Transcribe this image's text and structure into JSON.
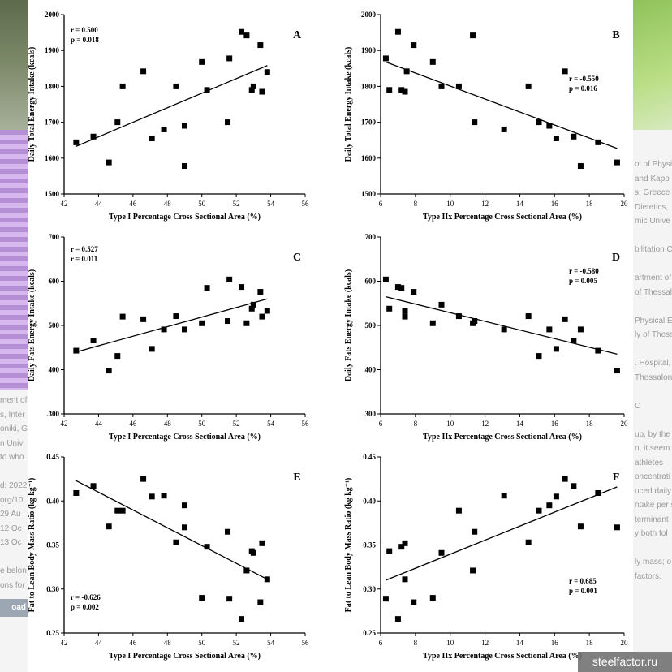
{
  "watermark": "steelfactor.ru",
  "download_label": "oad",
  "left_partial_text": [
    "ment of",
    "s, Inter",
    "oniki, G",
    "n Univ",
    "to who",
    "",
    "d: 2022",
    "org/10",
    "29 Au",
    "12 Oc",
    "13 Oc",
    "",
    "e belon",
    "ons for"
  ],
  "right_partial_text": [
    "ol of Physi",
    "and Kapo",
    "s, Greece",
    "Dietetics,",
    "mic Unive",
    "",
    "bilitation C",
    "",
    "artment of",
    "of Thessal",
    "",
    "Physical Ed",
    "ly of Thess",
    "",
    ". Hospital,",
    "Thessalon",
    "",
    "C",
    "",
    "up, by the",
    "n, it seem",
    "athletes",
    "oncentrati",
    "uced daily",
    "ntake per s",
    "terminant",
    "y both fol",
    "",
    "ly mass; o",
    "factors."
  ],
  "chart_data": [
    {
      "type": "scatter",
      "panel_label": "A",
      "stats": [
        "r = 0.500",
        "p = 0.018"
      ],
      "xlabel": "Type I Percentage Cross Sectional Area (%)",
      "ylabel": "Daily Total Energy Intake (kcals)",
      "xlim": [
        42,
        56
      ],
      "ylim": [
        1500,
        2000
      ],
      "xticks": [
        42,
        44,
        46,
        48,
        50,
        52,
        54,
        56
      ],
      "xtick_labels": [
        "42",
        "44",
        "46",
        "48",
        "50",
        "52",
        "54",
        "56"
      ],
      "yticks": [
        1500,
        1600,
        1700,
        1800,
        1900,
        2000
      ],
      "ytick_labels": [
        "1500",
        "1600",
        "1700",
        "1800",
        "1900",
        "2000"
      ],
      "x": [
        42.7,
        43.7,
        44.6,
        45.1,
        45.4,
        46.6,
        47.1,
        47.8,
        48.5,
        49.0,
        49.0,
        50.0,
        50.3,
        51.5,
        51.6,
        52.3,
        52.6,
        52.9,
        53.0,
        53.4,
        53.5,
        53.8
      ],
      "y": [
        1644,
        1660,
        1588,
        1700,
        1800,
        1842,
        1655,
        1680,
        1800,
        1690,
        1578,
        1868,
        1790,
        1700,
        1878,
        1952,
        1942,
        1790,
        1800,
        1915,
        1785,
        1840
      ],
      "trend": {
        "x": [
          42.7,
          53.8
        ],
        "y": [
          1633,
          1858
        ]
      }
    },
    {
      "type": "scatter",
      "panel_label": "B",
      "stats": [
        "r = -0.550",
        "p = 0.016"
      ],
      "xlabel": "Type IIx Percentage Cross Sectional Area (%)",
      "ylabel": "Daily Total Energy Intake (kcals)",
      "xlim": [
        6,
        20
      ],
      "ylim": [
        1500,
        2000
      ],
      "xticks": [
        6,
        8,
        10,
        12,
        14,
        16,
        18,
        20
      ],
      "xtick_labels": [
        "6",
        "8",
        "10",
        "12",
        "14",
        "16",
        "18",
        "20"
      ],
      "yticks": [
        1500,
        1600,
        1700,
        1800,
        1900,
        2000
      ],
      "ytick_labels": [
        "1500",
        "1600",
        "1700",
        "1800",
        "1900",
        "2000"
      ],
      "x": [
        6.3,
        6.5,
        7.0,
        7.2,
        7.4,
        7.5,
        7.9,
        9.0,
        9.5,
        10.5,
        11.3,
        11.4,
        13.1,
        14.5,
        15.1,
        15.7,
        16.1,
        16.6,
        17.1,
        17.5,
        18.5,
        19.6
      ],
      "y": [
        1878,
        1790,
        1952,
        1790,
        1785,
        1842,
        1915,
        1868,
        1800,
        1800,
        1942,
        1700,
        1680,
        1800,
        1700,
        1690,
        1655,
        1842,
        1660,
        1578,
        1644,
        1588
      ],
      "trend": {
        "x": [
          6.3,
          19.6
        ],
        "y": [
          1868,
          1627
        ]
      }
    },
    {
      "type": "scatter",
      "panel_label": "C",
      "stats": [
        "r = 0.527",
        "r = 0.011"
      ],
      "xlabel": "Type I Percentage Cross Sectional Area (%)",
      "ylabel": "Daily Fats Energy Intake (kcals)",
      "xlim": [
        42,
        56
      ],
      "ylim": [
        300,
        700
      ],
      "xticks": [
        42,
        44,
        46,
        48,
        50,
        52,
        54,
        56
      ],
      "xtick_labels": [
        "42",
        "44",
        "46",
        "48",
        "50",
        "52",
        "54",
        "56"
      ],
      "yticks": [
        300,
        400,
        500,
        600,
        700
      ],
      "ytick_labels": [
        ".300",
        "400",
        "500",
        "600",
        "700"
      ],
      "x": [
        42.7,
        43.7,
        44.6,
        45.1,
        45.4,
        46.6,
        47.1,
        47.8,
        48.5,
        49.0,
        50.0,
        50.3,
        51.5,
        51.6,
        52.3,
        52.6,
        52.9,
        53.0,
        53.4,
        53.5,
        53.8
      ],
      "y": [
        443,
        466,
        398,
        431,
        520,
        514,
        447,
        491,
        521,
        491,
        505,
        585,
        510,
        604,
        587,
        505,
        538,
        547,
        576,
        520,
        533
      ],
      "trend": {
        "x": [
          42.7,
          53.8
        ],
        "y": [
          440,
          560
        ]
      }
    },
    {
      "type": "scatter",
      "panel_label": "D",
      "stats": [
        "r = -0.580",
        "p = 0.005"
      ],
      "xlabel": "Type IIx Percentage Cross Sectional Area (%)",
      "ylabel": "Daily Fats Energy Intake (kcals)",
      "xlim": [
        6,
        20
      ],
      "ylim": [
        300,
        700
      ],
      "xticks": [
        6,
        8,
        10,
        12,
        14,
        16,
        18,
        20
      ],
      "xtick_labels": [
        "6",
        "8",
        "10",
        "12",
        "14",
        "16",
        "18",
        "20"
      ],
      "yticks": [
        300,
        400,
        500,
        600,
        700
      ],
      "ytick_labels": [
        ".300",
        "400",
        "500",
        "600",
        "700"
      ],
      "x": [
        6.3,
        6.5,
        7.0,
        7.2,
        7.4,
        7.4,
        7.9,
        9.0,
        9.5,
        10.5,
        11.3,
        11.4,
        13.1,
        14.5,
        15.1,
        15.7,
        16.1,
        16.6,
        17.1,
        17.5,
        18.5,
        19.6
      ],
      "y": [
        604,
        538,
        587,
        585,
        520,
        533,
        576,
        505,
        547,
        521,
        505,
        510,
        491,
        521,
        431,
        491,
        447,
        514,
        466,
        491,
        443,
        398
      ],
      "trend": {
        "x": [
          6.3,
          19.6
        ],
        "y": [
          565,
          435
        ]
      }
    },
    {
      "type": "scatter",
      "panel_label": "E",
      "stats": [
        "r = -0.626",
        "p = 0.002"
      ],
      "xlabel": "Type I Percentage Cross Sectional Area (%)",
      "ylabel": "Fat to Lean Body Mass Ratio (kg kg⁻¹)",
      "xlim": [
        42,
        56
      ],
      "ylim": [
        0.25,
        0.45
      ],
      "xticks": [
        42,
        44,
        46,
        48,
        50,
        52,
        54,
        56
      ],
      "xtick_labels": [
        "42",
        "44",
        "46",
        "48",
        "50",
        "52",
        "54",
        "56"
      ],
      "yticks": [
        0.25,
        0.3,
        0.35,
        0.4,
        0.45
      ],
      "ytick_labels": [
        "0.25",
        "0.30",
        "0.35",
        "0.40",
        "0.45"
      ],
      "x": [
        42.7,
        43.7,
        44.6,
        45.1,
        45.4,
        46.6,
        47.1,
        47.8,
        48.5,
        49.0,
        49.0,
        50.0,
        50.3,
        51.5,
        51.6,
        52.3,
        52.6,
        52.9,
        53.0,
        53.4,
        53.5,
        53.8
      ],
      "y": [
        0.409,
        0.417,
        0.371,
        0.389,
        0.389,
        0.425,
        0.405,
        0.406,
        0.353,
        0.395,
        0.37,
        0.29,
        0.348,
        0.365,
        0.289,
        0.266,
        0.321,
        0.343,
        0.341,
        0.285,
        0.352,
        0.311
      ],
      "trend": {
        "x": [
          42.7,
          53.8
        ],
        "y": [
          0.423,
          0.311
        ]
      }
    },
    {
      "type": "scatter",
      "panel_label": "F",
      "stats": [
        "r = 0.685",
        "p = 0.001"
      ],
      "xlabel": "Type IIx Percentage Cross Sectional Area (%)",
      "ylabel": "Fat to Lean Body Mass Ratio (kg kg⁻¹)",
      "xlim": [
        6,
        20
      ],
      "ylim": [
        0.25,
        0.45
      ],
      "xticks": [
        6,
        8,
        10,
        12,
        14,
        16,
        18,
        20
      ],
      "xtick_labels": [
        "6",
        "8",
        "10",
        "12",
        "14",
        "16",
        "18",
        "20"
      ],
      "yticks": [
        0.25,
        0.3,
        0.35,
        0.4,
        0.45
      ],
      "ytick_labels": [
        "0.25",
        "0.30",
        "0.35",
        "0.40",
        "0.45"
      ],
      "x": [
        6.3,
        6.5,
        7.0,
        7.2,
        7.4,
        7.4,
        7.9,
        9.0,
        9.5,
        10.5,
        11.3,
        11.4,
        13.1,
        14.5,
        15.1,
        15.7,
        16.1,
        16.6,
        17.1,
        17.5,
        18.5,
        19.6
      ],
      "y": [
        0.289,
        0.343,
        0.266,
        0.348,
        0.311,
        0.352,
        0.285,
        0.29,
        0.341,
        0.389,
        0.321,
        0.365,
        0.406,
        0.353,
        0.389,
        0.395,
        0.405,
        0.425,
        0.417,
        0.371,
        0.409,
        0.37
      ],
      "trend": {
        "x": [
          6.3,
          19.6
        ],
        "y": [
          0.31,
          0.416
        ]
      }
    }
  ]
}
